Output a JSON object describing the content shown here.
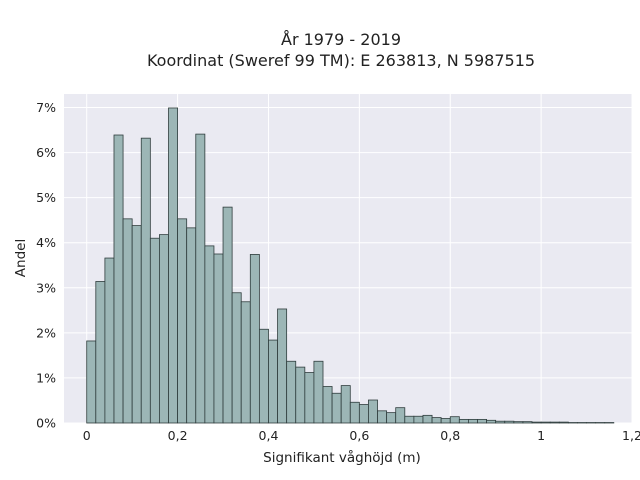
{
  "chart_data": {
    "type": "bar",
    "title": "År 1979 - 2019",
    "subtitle": "Koordinat (Sweref 99 TM): E 263813, N 5987515",
    "xlabel": "Signifikant våghöjd (m)",
    "ylabel": "Andel",
    "xlim": [
      -0.05,
      1.2
    ],
    "ylim": [
      0,
      7.3
    ],
    "x_ticks": [
      0,
      0.2,
      0.4,
      0.6,
      0.8,
      1,
      1.2
    ],
    "x_tick_labels": [
      "0",
      "0,2",
      "0,4",
      "0,6",
      "0,8",
      "1",
      "1,2"
    ],
    "y_ticks": [
      0,
      1,
      2,
      3,
      4,
      5,
      6,
      7
    ],
    "y_tick_labels": [
      "0%",
      "1%",
      "2%",
      "3%",
      "4%",
      "5%",
      "6%",
      "7%"
    ],
    "grid": true,
    "bin_width": 0.02,
    "bin_starts": [
      0,
      0.02,
      0.04,
      0.06,
      0.08,
      0.1,
      0.12,
      0.14,
      0.16,
      0.18,
      0.2,
      0.22,
      0.24,
      0.26,
      0.28,
      0.3,
      0.32,
      0.34,
      0.36,
      0.38,
      0.4,
      0.42,
      0.44,
      0.46,
      0.48,
      0.5,
      0.52,
      0.54,
      0.56,
      0.58,
      0.6,
      0.62,
      0.64,
      0.66,
      0.68,
      0.7,
      0.72,
      0.74,
      0.76,
      0.78,
      0.8,
      0.82,
      0.84,
      0.86,
      0.88,
      0.9,
      0.92,
      0.94,
      0.96,
      0.98,
      1.0,
      1.02,
      1.04,
      1.06,
      1.08,
      1.1,
      1.12,
      1.14
    ],
    "values": [
      1.82,
      3.14,
      3.66,
      6.39,
      4.53,
      4.38,
      6.32,
      4.1,
      4.18,
      6.99,
      4.53,
      4.33,
      6.41,
      3.93,
      3.75,
      4.79,
      2.89,
      2.69,
      3.74,
      2.08,
      1.84,
      2.53,
      1.37,
      1.24,
      1.12,
      1.37,
      0.81,
      0.66,
      0.83,
      0.46,
      0.41,
      0.51,
      0.27,
      0.23,
      0.34,
      0.15,
      0.15,
      0.17,
      0.12,
      0.1,
      0.14,
      0.08,
      0.08,
      0.08,
      0.06,
      0.04,
      0.04,
      0.03,
      0.03,
      0.02,
      0.02,
      0.02,
      0.02,
      0.01,
      0.01,
      0.01,
      0.01,
      0.01
    ],
    "colors": {
      "bar_fill": "#9cb6b6",
      "bar_stroke": "#2f3d3d",
      "plot_background": "#eaeaf2",
      "grid": "#ffffff"
    }
  }
}
